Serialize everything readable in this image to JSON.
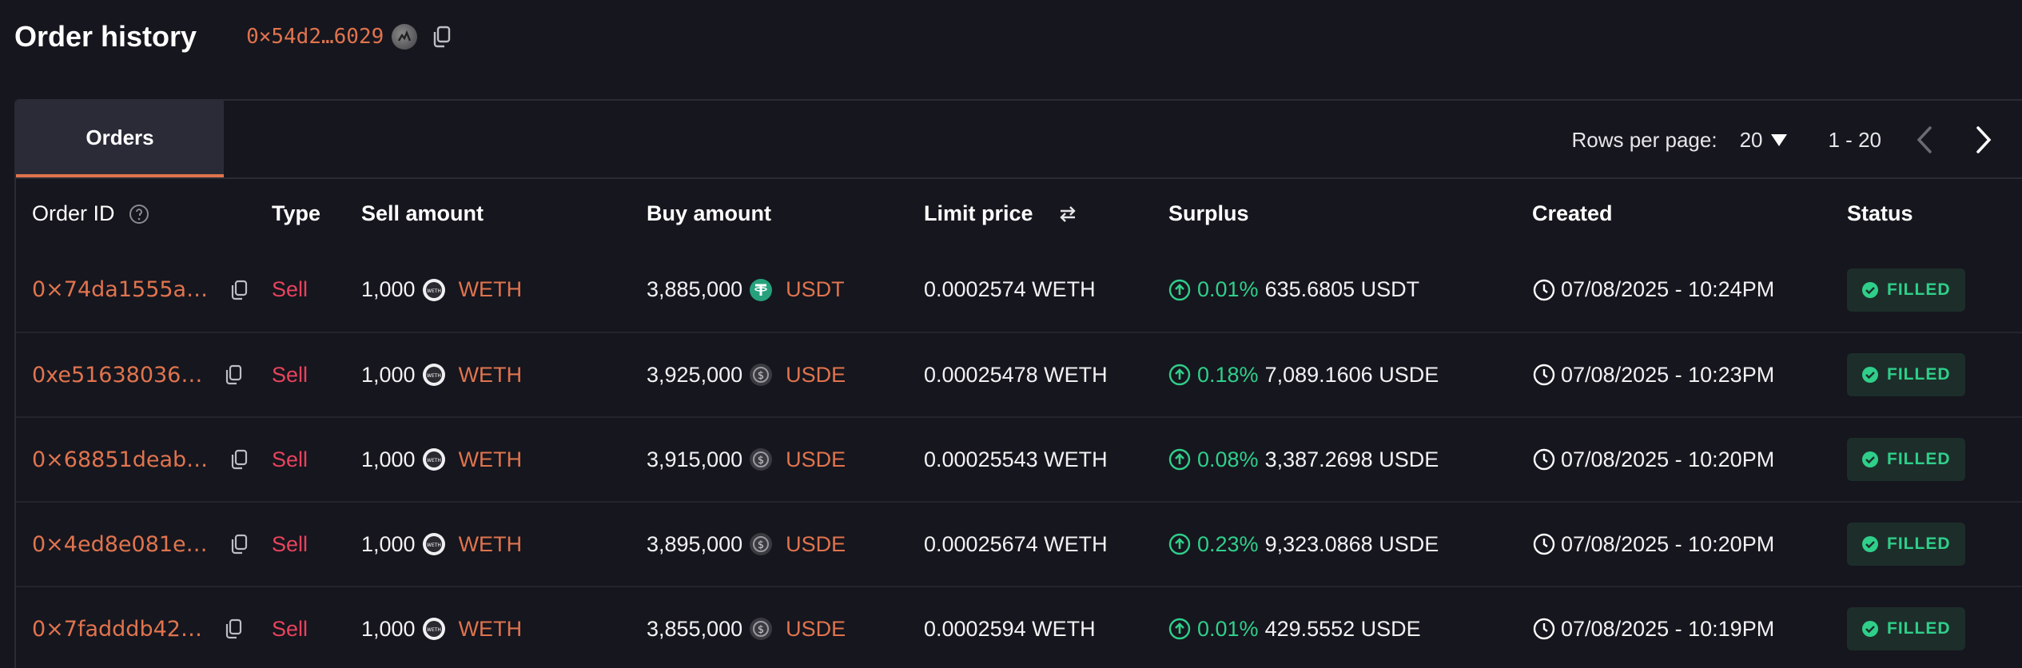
{
  "header": {
    "title": "Order history",
    "address": "0×54d2…6029"
  },
  "tabs": [
    {
      "label": "Orders"
    }
  ],
  "pagination": {
    "rows_label": "Rows per page:",
    "rows_value": "20",
    "range": "1 - 20"
  },
  "columns": {
    "order_id": "Order ID",
    "type": "Type",
    "sell_amount": "Sell amount",
    "buy_amount": "Buy amount",
    "limit_price": "Limit price",
    "surplus": "Surplus",
    "created": "Created",
    "status": "Status"
  },
  "colors": {
    "accent": "#e0744e",
    "sell": "#e8435d",
    "positive": "#2fcf8a"
  },
  "rows": [
    {
      "order_id": "0×74da1555a…",
      "type": "Sell",
      "sell_amount": "1,000",
      "sell_token": "WETH",
      "buy_amount": "3,885,000",
      "buy_token": "USDT",
      "buy_icon": "usdt-icon",
      "limit_price": "0.0002574 WETH",
      "surplus_pct": "0.01%",
      "surplus_amount": "635.6805 USDT",
      "created": "07/08/2025 - 10:24PM",
      "status": "FILLED"
    },
    {
      "order_id": "0xe51638036…",
      "type": "Sell",
      "sell_amount": "1,000",
      "sell_token": "WETH",
      "buy_amount": "3,925,000",
      "buy_token": "USDE",
      "buy_icon": "usde-icon",
      "limit_price": "0.00025478 WETH",
      "surplus_pct": "0.18%",
      "surplus_amount": "7,089.1606 USDE",
      "created": "07/08/2025 - 10:23PM",
      "status": "FILLED"
    },
    {
      "order_id": "0×68851deab…",
      "type": "Sell",
      "sell_amount": "1,000",
      "sell_token": "WETH",
      "buy_amount": "3,915,000",
      "buy_token": "USDE",
      "buy_icon": "usde-icon",
      "limit_price": "0.00025543 WETH",
      "surplus_pct": "0.08%",
      "surplus_amount": "3,387.2698 USDE",
      "created": "07/08/2025 - 10:20PM",
      "status": "FILLED"
    },
    {
      "order_id": "0×4ed8e081e…",
      "type": "Sell",
      "sell_amount": "1,000",
      "sell_token": "WETH",
      "buy_amount": "3,895,000",
      "buy_token": "USDE",
      "buy_icon": "usde-icon",
      "limit_price": "0.00025674 WETH",
      "surplus_pct": "0.23%",
      "surplus_amount": "9,323.0868 USDE",
      "created": "07/08/2025 - 10:20PM",
      "status": "FILLED"
    },
    {
      "order_id": "0×7fadddb42…",
      "type": "Sell",
      "sell_amount": "1,000",
      "sell_token": "WETH",
      "buy_amount": "3,855,000",
      "buy_token": "USDE",
      "buy_icon": "usde-icon",
      "limit_price": "0.0002594 WETH",
      "surplus_pct": "0.01%",
      "surplus_amount": "429.5552 USDE",
      "created": "07/08/2025 - 10:19PM",
      "status": "FILLED"
    }
  ]
}
